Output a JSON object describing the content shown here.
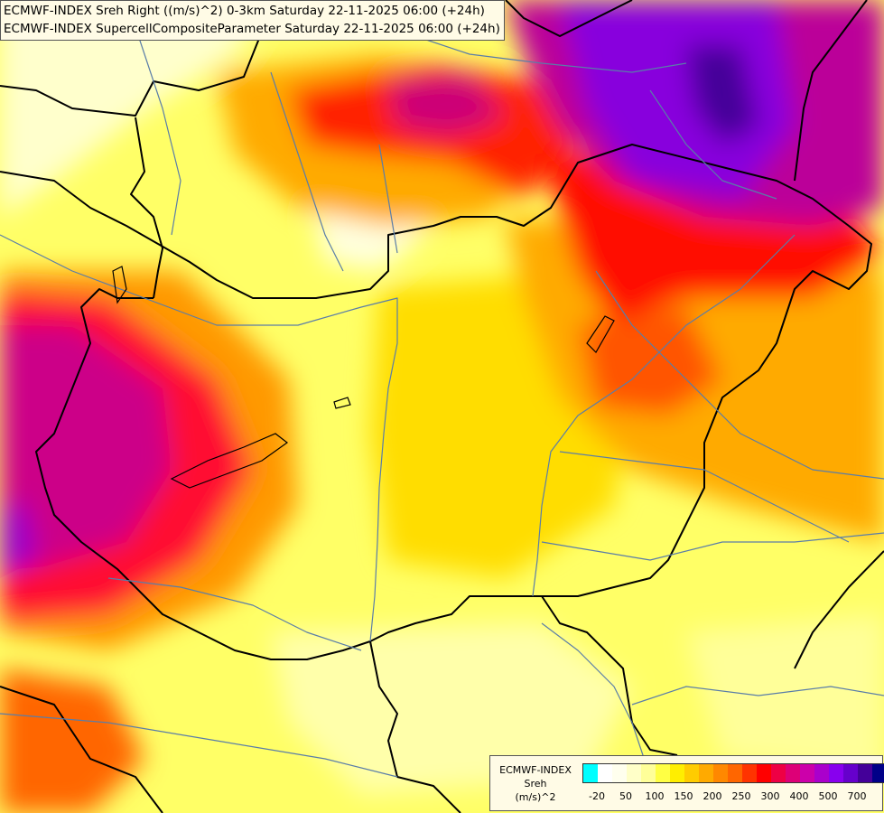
{
  "map": {
    "title_line1": "ECMWF-INDEX Sreh Right ((m/s)^2) 0-3km Saturday 22-11-2025 06:00 (+24h)",
    "title_line2": "ECMWF-INDEX SupercellCompositeParameter Saturday 22-11-2025 06:00 (+24h)",
    "background_color": "#ffff66",
    "border_color": "#000000",
    "river_color": "#5a7da8"
  },
  "legend": {
    "line1": "ECMWF-INDEX",
    "line2": "Sreh",
    "line3": "(m/s)^2",
    "swatches": [
      "#00ffff",
      "#ffffff",
      "#ffffee",
      "#ffffc8",
      "#ffff99",
      "#ffff44",
      "#ffee00",
      "#ffcc00",
      "#ffaa00",
      "#ff8800",
      "#ff6600",
      "#ff3300",
      "#ff0000",
      "#ee0044",
      "#dd0077",
      "#cc00aa",
      "#aa00cc",
      "#8800ee",
      "#6600cc",
      "#440099",
      "#000088"
    ],
    "ticks": [
      "-20",
      "50",
      "100",
      "150",
      "200",
      "250",
      "300",
      "400",
      "500",
      "700"
    ]
  }
}
